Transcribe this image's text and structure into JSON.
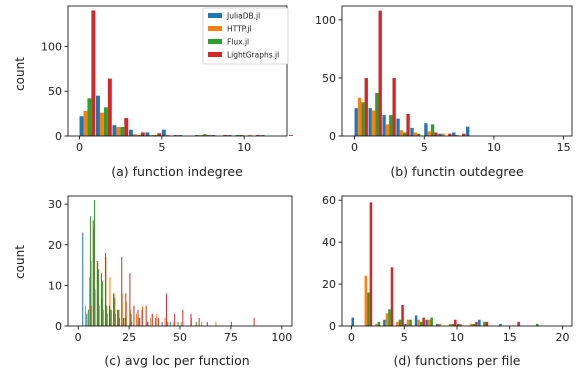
{
  "colors": {
    "JuliaDB.jl": "#1f77b4",
    "HTTP.jl": "#ff7f0e",
    "Flux.jl": "#2ca02c",
    "LightGraphs.jl": "#d62728"
  },
  "legend": {
    "placement": "top-right of panel (a)",
    "entries": [
      "JuliaDB.jl",
      "HTTP.jl",
      "Flux.jl",
      "LightGraphs.jl"
    ]
  },
  "chart_data": [
    {
      "type": "bar",
      "caption": "(a) function indegree",
      "ylabel": "count",
      "xlim": [
        -0.7,
        12.6
      ],
      "ylim": [
        0,
        145
      ],
      "xticks": [
        0,
        5,
        10
      ],
      "yticks": [
        0,
        50,
        100
      ],
      "bin_width": 1,
      "bar_width": 0.24,
      "legend": true,
      "series": [
        {
          "name": "JuliaDB.jl",
          "x": [
            0,
            1,
            2,
            3,
            4,
            5,
            6,
            7,
            8,
            9,
            11
          ],
          "values": [
            22,
            45,
            12,
            7,
            4,
            7,
            1,
            1,
            1,
            1,
            1
          ]
        },
        {
          "name": "HTTP.jl",
          "x": [
            0,
            1,
            2,
            3,
            4,
            5,
            7,
            10
          ],
          "values": [
            28,
            26,
            10,
            2,
            1,
            1,
            1,
            1
          ]
        },
        {
          "name": "Flux.jl",
          "x": [
            0,
            1,
            2,
            3,
            4,
            7,
            9
          ],
          "values": [
            42,
            32,
            10,
            1,
            1,
            2,
            1
          ]
        },
        {
          "name": "LightGraphs.jl",
          "x": [
            0,
            1,
            2,
            3,
            4,
            5,
            7,
            8,
            9,
            10,
            12
          ],
          "values": [
            140,
            64,
            20,
            4,
            3,
            1,
            1,
            1,
            1,
            1,
            1
          ]
        }
      ]
    },
    {
      "type": "bar",
      "caption": "(b) functin outdegree",
      "ylabel": "",
      "xlim": [
        -0.9,
        15.6
      ],
      "ylim": [
        0,
        112
      ],
      "xticks": [
        0,
        5,
        10,
        15
      ],
      "yticks": [
        0,
        50,
        100
      ],
      "bin_width": 1,
      "bar_width": 0.24,
      "legend": false,
      "series": [
        {
          "name": "JuliaDB.jl",
          "x": [
            0,
            1,
            2,
            3,
            4,
            5,
            6,
            7,
            8
          ],
          "values": [
            24,
            24,
            18,
            15,
            7,
            11,
            2,
            3,
            8
          ]
        },
        {
          "name": "HTTP.jl",
          "x": [
            0,
            1,
            2,
            3,
            4,
            5,
            6,
            7
          ],
          "values": [
            33,
            22,
            10,
            5,
            3,
            4,
            2,
            1
          ]
        },
        {
          "name": "Flux.jl",
          "x": [
            0,
            1,
            2,
            3,
            4,
            5
          ],
          "values": [
            29,
            37,
            18,
            3,
            2,
            10
          ]
        },
        {
          "name": "LightGraphs.jl",
          "x": [
            0,
            1,
            2,
            3,
            5,
            6,
            7
          ],
          "values": [
            50,
            108,
            50,
            19,
            3,
            2,
            2
          ]
        }
      ]
    },
    {
      "type": "bar",
      "caption": "(c) avg loc per function",
      "ylabel": "count",
      "xlim": [
        -5,
        105
      ],
      "ylim": [
        0,
        32
      ],
      "xticks": [
        0,
        25,
        50,
        75,
        100
      ],
      "yticks": [
        0,
        10,
        20,
        30
      ],
      "bin_width": 1.6,
      "bar_width": 0.38,
      "legend": false,
      "series": [
        {
          "name": "JuliaDB.jl",
          "x": [
            2,
            4,
            6,
            8,
            10,
            12,
            14,
            16,
            18,
            20,
            22,
            26,
            30,
            34,
            41,
            45,
            75
          ],
          "values": [
            23,
            3,
            16,
            9,
            5,
            4,
            3,
            4,
            3,
            2,
            2,
            1,
            2,
            1,
            1,
            1,
            1
          ]
        },
        {
          "name": "HTTP.jl",
          "x": [
            3,
            5,
            7,
            9,
            11,
            13,
            15,
            17,
            19,
            21,
            23,
            25,
            28,
            31,
            35,
            38,
            42,
            46,
            50,
            55,
            60,
            67
          ],
          "values": [
            5,
            12,
            24,
            16,
            7,
            17,
            12,
            8,
            4,
            8,
            6,
            4,
            3,
            5,
            2,
            3,
            2,
            1,
            1,
            2,
            1,
            1
          ]
        },
        {
          "name": "Flux.jl",
          "x": [
            4,
            5,
            7,
            9,
            11,
            13,
            15,
            17,
            19,
            22,
            25,
            29,
            33,
            37,
            43,
            48,
            57
          ],
          "values": [
            4,
            27,
            31,
            14,
            11,
            5,
            4,
            7,
            4,
            2,
            3,
            2,
            1,
            2,
            1,
            1,
            1
          ]
        },
        {
          "name": "LightGraphs.jl",
          "x": [
            5,
            6,
            8,
            10,
            12,
            14,
            16,
            18,
            20,
            22,
            24,
            26,
            28,
            30,
            32,
            35,
            38,
            42,
            46,
            50,
            54,
            58,
            62,
            85
          ],
          "values": [
            5,
            26,
            16,
            13,
            18,
            5,
            8,
            4,
            17,
            8,
            13,
            5,
            4,
            4,
            5,
            3,
            2,
            8,
            3,
            4,
            3,
            2,
            1,
            2
          ]
        }
      ]
    },
    {
      "type": "bar",
      "caption": "(d) functions per file",
      "ylabel": "",
      "xlim": [
        -0.9,
        20.9
      ],
      "ylim": [
        0,
        62
      ],
      "xticks": [
        0,
        5,
        10,
        15,
        20
      ],
      "yticks": [
        0,
        20,
        40,
        60
      ],
      "bin_width": 1,
      "bar_width": 0.24,
      "legend": false,
      "series": [
        {
          "name": "JuliaDB.jl",
          "x": [
            0,
            1,
            3,
            5,
            6,
            7,
            8,
            10,
            12,
            14
          ],
          "values": [
            4,
            0,
            3,
            1,
            5,
            3,
            1,
            1,
            3,
            1
          ]
        },
        {
          "name": "HTTP.jl",
          "x": [
            1,
            2,
            3,
            4,
            5,
            6,
            7,
            8,
            9,
            10,
            11
          ],
          "values": [
            24,
            1,
            6,
            2,
            3,
            3,
            3,
            1,
            1,
            1,
            1
          ]
        },
        {
          "name": "Flux.jl",
          "x": [
            1,
            2,
            3,
            4,
            5,
            6,
            7,
            9,
            11,
            12,
            17
          ],
          "values": [
            16,
            2,
            8,
            3,
            3,
            2,
            4,
            1,
            1,
            2,
            1
          ]
        },
        {
          "name": "LightGraphs.jl",
          "x": [
            1,
            3,
            4,
            6,
            9,
            11,
            12,
            15
          ],
          "values": [
            59,
            28,
            10,
            4,
            3,
            2,
            2,
            2
          ]
        }
      ]
    }
  ]
}
